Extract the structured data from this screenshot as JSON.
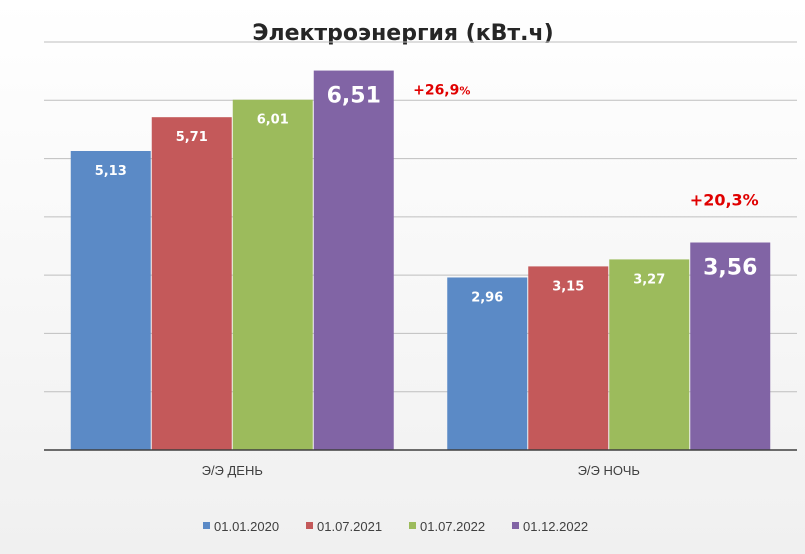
{
  "chart_data": {
    "type": "bar",
    "title": "Электроэнергия (кВт.ч)",
    "categories": [
      "Э/Э ДЕНЬ",
      "Э/Э НОЧЬ"
    ],
    "series": [
      {
        "name": "01.01.2020",
        "values": [
          5.13,
          2.96
        ],
        "labels": [
          "5,13",
          "2,96"
        ],
        "color": "#5b8ac6"
      },
      {
        "name": "01.07.2021",
        "values": [
          5.71,
          3.15
        ],
        "labels": [
          "5,71",
          "3,15"
        ],
        "color": "#c4595a"
      },
      {
        "name": "01.07.2022",
        "values": [
          6.01,
          3.27
        ],
        "labels": [
          "6,01",
          "3,27"
        ],
        "color": "#9cbb5c"
      },
      {
        "name": "01.12.2022",
        "values": [
          6.51,
          3.56
        ],
        "labels": [
          "6,51",
          "3,56"
        ],
        "color": "#8164a5"
      }
    ],
    "annotations": [
      {
        "category": "Э/Э ДЕНЬ",
        "text": "+26,9%"
      },
      {
        "category": "Э/Э НОЧЬ",
        "text": "+20,3%"
      }
    ],
    "ylim": [
      0,
      7
    ],
    "y_tick_step": 1,
    "grid": true,
    "legend_position": "bottom",
    "emphasized_series": "01.12.2022"
  }
}
